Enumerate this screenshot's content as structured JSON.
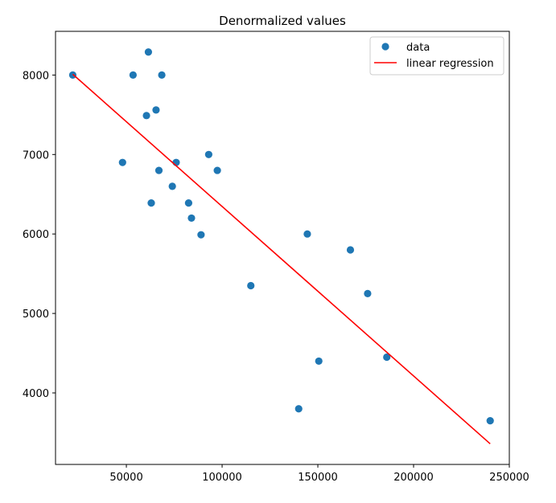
{
  "chart_data": {
    "type": "scatter",
    "title": "Denormalized values",
    "xlabel": "",
    "ylabel": "",
    "xlim": [
      13000,
      250000
    ],
    "ylim": [
      3100,
      8550
    ],
    "xticks": [
      {
        "value": 50000,
        "label": "50000"
      },
      {
        "value": 100000,
        "label": "100000"
      },
      {
        "value": 150000,
        "label": "150000"
      },
      {
        "value": 200000,
        "label": "200000"
      },
      {
        "value": 250000,
        "label": "250000"
      }
    ],
    "yticks": [
      {
        "value": 4000,
        "label": "4000"
      },
      {
        "value": 5000,
        "label": "5000"
      },
      {
        "value": 6000,
        "label": "6000"
      },
      {
        "value": 7000,
        "label": "7000"
      },
      {
        "value": 8000,
        "label": "8000"
      }
    ],
    "legend": {
      "position": "top-right",
      "entries": [
        {
          "label": "data",
          "marker": "circle",
          "color": "#1f77b4"
        },
        {
          "label": "linear regression",
          "marker": "line",
          "color": "#ff0000"
        }
      ]
    },
    "series": [
      {
        "name": "data",
        "type": "scatter",
        "color": "#1f77b4",
        "points": [
          {
            "x": 22000,
            "y": 8000
          },
          {
            "x": 48000,
            "y": 6900
          },
          {
            "x": 53500,
            "y": 8000
          },
          {
            "x": 60500,
            "y": 7490
          },
          {
            "x": 61500,
            "y": 8290
          },
          {
            "x": 63000,
            "y": 6390
          },
          {
            "x": 65500,
            "y": 7560
          },
          {
            "x": 67000,
            "y": 6800
          },
          {
            "x": 68500,
            "y": 8000
          },
          {
            "x": 74000,
            "y": 6600
          },
          {
            "x": 76000,
            "y": 6900
          },
          {
            "x": 82500,
            "y": 6390
          },
          {
            "x": 84000,
            "y": 6200
          },
          {
            "x": 89000,
            "y": 5990
          },
          {
            "x": 93000,
            "y": 7000
          },
          {
            "x": 97500,
            "y": 6800
          },
          {
            "x": 115000,
            "y": 5350
          },
          {
            "x": 140000,
            "y": 3800
          },
          {
            "x": 144500,
            "y": 6000
          },
          {
            "x": 150500,
            "y": 4400
          },
          {
            "x": 167000,
            "y": 5800
          },
          {
            "x": 176000,
            "y": 5250
          },
          {
            "x": 186000,
            "y": 4450
          },
          {
            "x": 240000,
            "y": 3650
          }
        ]
      },
      {
        "name": "linear regression",
        "type": "line",
        "color": "#ff0000",
        "points": [
          {
            "x": 22000,
            "y": 8010
          },
          {
            "x": 240000,
            "y": 3360
          }
        ]
      }
    ]
  }
}
